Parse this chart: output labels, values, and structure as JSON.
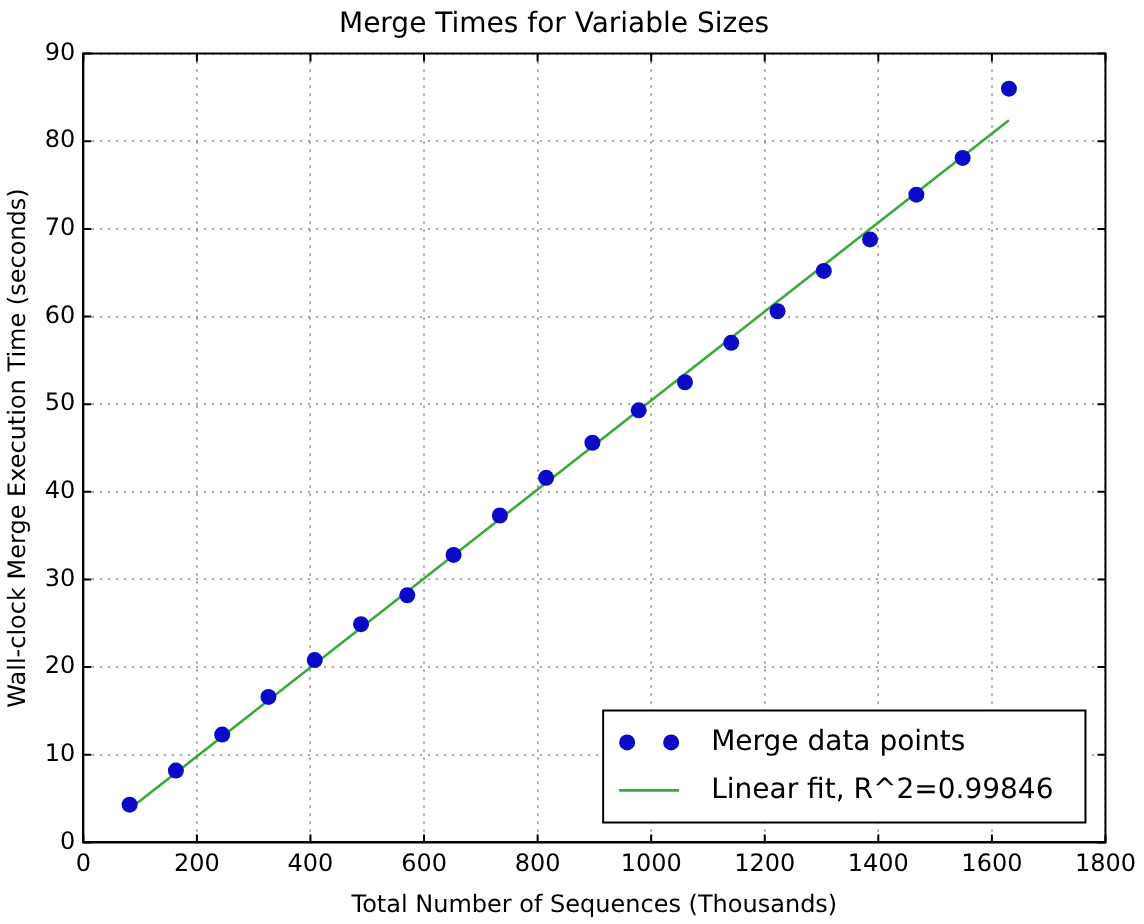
{
  "chart_data": {
    "type": "scatter",
    "title": "Merge Times for Variable Sizes",
    "xlabel": "Total Number of Sequences (Thousands)",
    "ylabel": "Wall-clock Merge Execution Time (seconds)",
    "xlim": [
      0,
      1800
    ],
    "xticks": [
      0,
      200,
      400,
      600,
      800,
      1000,
      1200,
      1400,
      1600,
      1800
    ],
    "ylim": [
      0,
      90
    ],
    "yticks": [
      0,
      10,
      20,
      30,
      40,
      50,
      60,
      70,
      80,
      90
    ],
    "grid": true,
    "legend": "bottom right",
    "series": [
      {
        "name": "Merge data points",
        "marker": "circle",
        "color": "#0a0ac8",
        "x": [
          81.5,
          163,
          244.5,
          326,
          407.5,
          489,
          570.5,
          652,
          733.5,
          815,
          896.5,
          978,
          1059.5,
          1141,
          1222.5,
          1304,
          1385.5,
          1467,
          1548.5,
          1630
        ],
        "values": [
          4.3,
          8.2,
          12.3,
          16.6,
          20.8,
          24.9,
          28.2,
          32.8,
          37.3,
          41.6,
          45.6,
          49.3,
          52.5,
          57.0,
          60.6,
          65.2,
          68.8,
          73.9,
          78.1,
          86.0
        ]
      },
      {
        "name": "Linear fit, R^2=0.99846",
        "type": "line",
        "marker": "none",
        "line_style": "solid",
        "color": "#3aa83a",
        "x": [
          81.5,
          1630
        ],
        "values": [
          3.8,
          82.4
        ]
      }
    ]
  }
}
